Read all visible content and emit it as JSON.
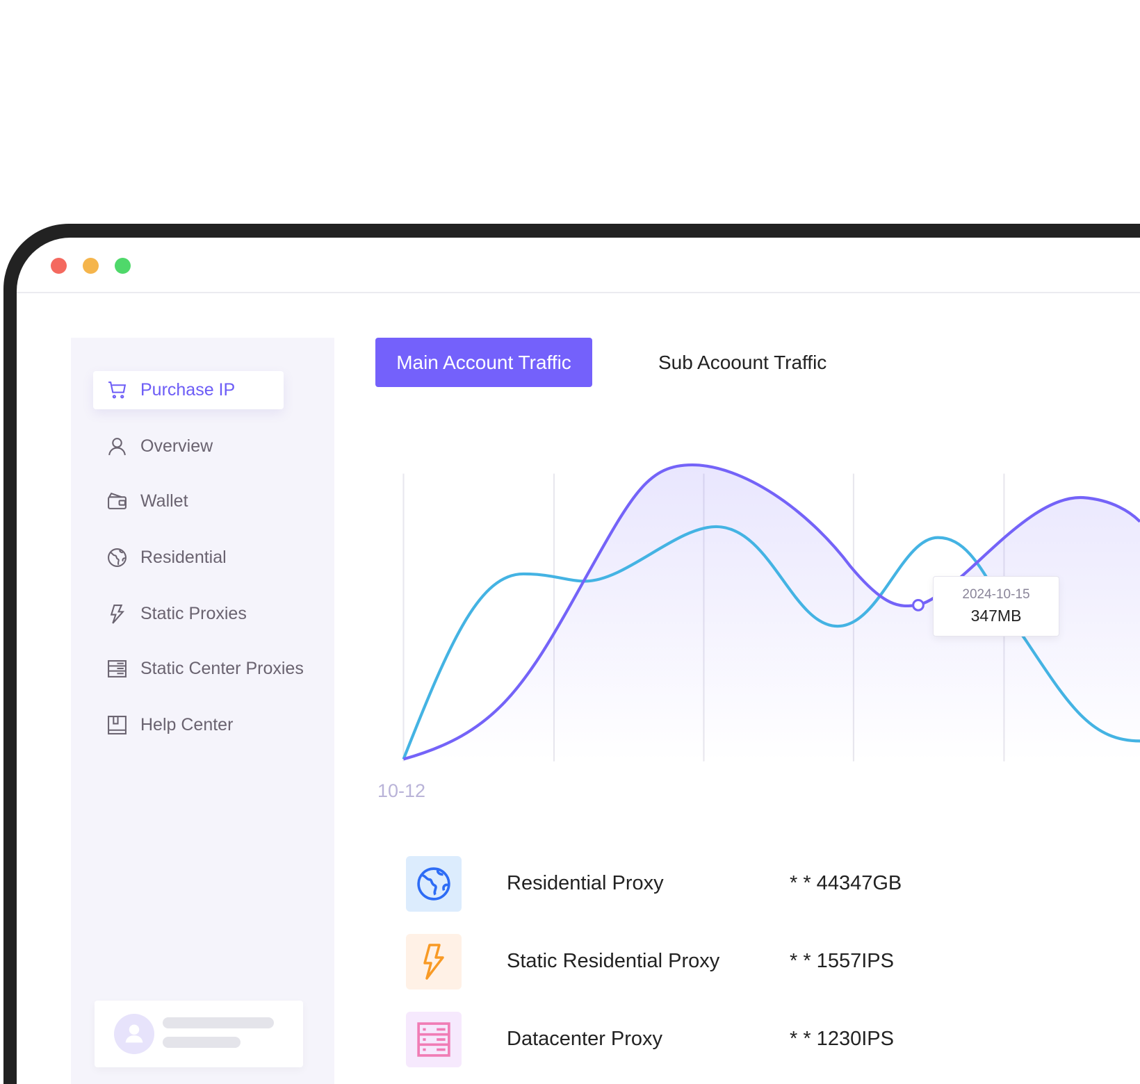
{
  "window": {
    "controls": {
      "close_color": "#f4695f",
      "minimize_color": "#f5b54c",
      "maximize_color": "#4fd86a"
    }
  },
  "sidebar": {
    "items": [
      {
        "label": "Purchase IP",
        "icon": "cart-icon",
        "active": true
      },
      {
        "label": "Overview",
        "icon": "user-icon"
      },
      {
        "label": "Wallet",
        "icon": "wallet-icon"
      },
      {
        "label": "Residential",
        "icon": "globe-icon"
      },
      {
        "label": "Static Proxies",
        "icon": "lightning-icon"
      },
      {
        "label": "Static Center Proxies",
        "icon": "server-icon"
      },
      {
        "label": "Help Center",
        "icon": "book-icon"
      }
    ]
  },
  "tabs": {
    "main": "Main Account Traffic",
    "sub": "Sub Acoount Traffic"
  },
  "chart_data": {
    "type": "area",
    "x_tick_labels": [
      "10-12"
    ],
    "series_colors": [
      "#7463f8",
      "#44b3e3"
    ],
    "grid": "vertical",
    "tooltip": {
      "date": "2024-10-15",
      "value": "347MB"
    }
  },
  "accent": "#7461fb",
  "products": [
    {
      "name": "Residential Proxy",
      "value": "* * 44347GB",
      "icon": "globe-icon",
      "color": "#2d6cf5",
      "bg": "#dcecfd"
    },
    {
      "name": "Static Residential Proxy",
      "value": "* * 1557IPS",
      "icon": "lightning-icon",
      "color": "#f89a25",
      "bg": "#fff1e6"
    },
    {
      "name": "Datacenter Proxy",
      "value": "* *  1230IPS",
      "icon": "server-icon",
      "color": "#f07cb5",
      "bg": "#f6e9fd"
    }
  ]
}
